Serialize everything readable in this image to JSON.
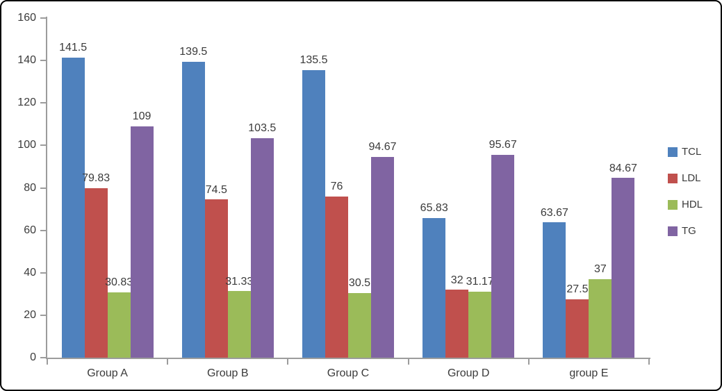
{
  "chart_data": {
    "type": "bar",
    "title": "",
    "xlabel": "",
    "ylabel": "",
    "categories": [
      "Group A",
      "Group B",
      "Group C",
      "Group D",
      "group E"
    ],
    "series": [
      {
        "name": "TCL",
        "color": "#4F81BD",
        "values": [
          141.5,
          139.5,
          135.5,
          65.83,
          63.67
        ],
        "labels": [
          "141.5",
          "139.5",
          "135.5",
          "65.83",
          "63.67"
        ]
      },
      {
        "name": "LDL",
        "color": "#C0504D",
        "values": [
          79.83,
          74.5,
          76,
          32,
          27.5
        ],
        "labels": [
          "79.83",
          "74.5",
          "76",
          "32",
          "27.5"
        ]
      },
      {
        "name": "HDL",
        "color": "#9BBB59",
        "values": [
          30.83,
          31.33,
          30.5,
          31.17,
          37
        ],
        "labels": [
          "30.83",
          "31.33",
          "30.5",
          "31.17",
          "37"
        ]
      },
      {
        "name": "TG",
        "color": "#8064A2",
        "values": [
          109,
          103.5,
          94.67,
          95.67,
          84.67
        ],
        "labels": [
          "109",
          "103.5",
          "94.67",
          "95.67",
          "84.67"
        ]
      }
    ],
    "ylim": [
      0,
      160
    ],
    "ytick_step": 20,
    "yticks": [
      "0",
      "20",
      "40",
      "60",
      "80",
      "100",
      "120",
      "140",
      "160"
    ],
    "grid": false,
    "legend_position": "right",
    "data_labels": "outside-end",
    "colors": {
      "axis": "#9C9C9C",
      "text": "#3A3A3A",
      "background": "#FFFFFF",
      "border": "#000000"
    }
  }
}
